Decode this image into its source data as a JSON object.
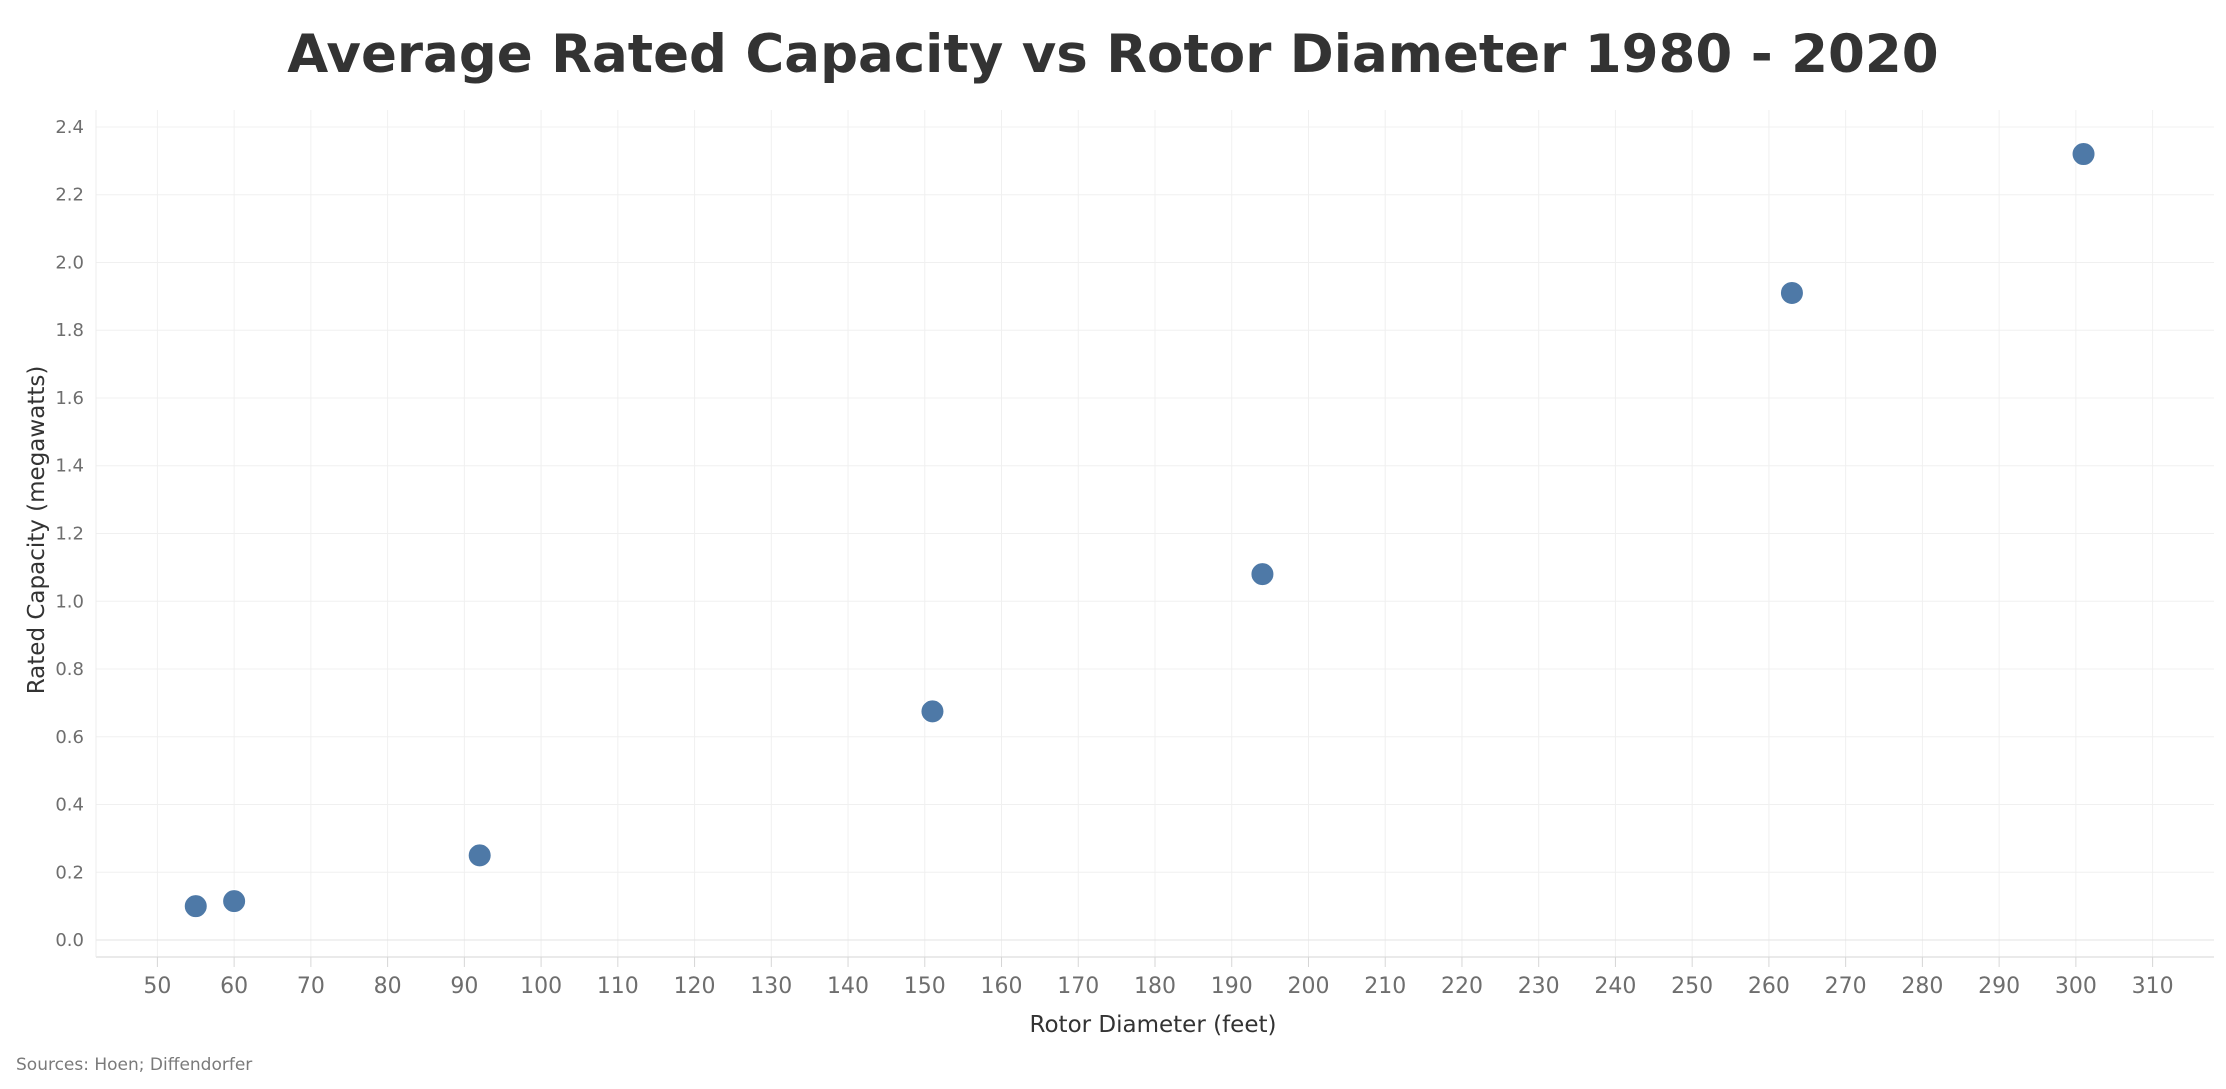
{
  "chart_data": {
    "type": "scatter",
    "title": "Average Rated Capacity vs Rotor Diameter 1980 - 2020",
    "xlabel": "Rotor Diameter (feet)",
    "ylabel": "Rated Capacity (megawatts)",
    "xlim": [
      42,
      318
    ],
    "ylim": [
      -0.05,
      2.45
    ],
    "xticks": [
      50,
      60,
      70,
      80,
      90,
      100,
      110,
      120,
      130,
      140,
      150,
      160,
      170,
      180,
      190,
      200,
      210,
      220,
      230,
      240,
      250,
      260,
      270,
      280,
      290,
      300,
      310
    ],
    "yticks": [
      0.0,
      0.2,
      0.4,
      0.6,
      0.8,
      1.0,
      1.2,
      1.4,
      1.6,
      1.8,
      2.0,
      2.2,
      2.4
    ],
    "ytick_labels": [
      "0.0",
      "0.2",
      "0.4",
      "0.6",
      "0.8",
      "1.0",
      "1.2",
      "1.4",
      "1.6",
      "1.8",
      "2.0",
      "2.2",
      "2.4"
    ],
    "grid": true,
    "marker_color": "#4e79a7",
    "points": [
      {
        "x": 55,
        "y": 0.1
      },
      {
        "x": 60,
        "y": 0.115
      },
      {
        "x": 92,
        "y": 0.25
      },
      {
        "x": 151,
        "y": 0.675
      },
      {
        "x": 194,
        "y": 1.08
      },
      {
        "x": 263,
        "y": 1.91
      },
      {
        "x": 301,
        "y": 2.32
      }
    ]
  },
  "footer": {
    "source": "Sources: Hoen; Diffendorfer"
  }
}
